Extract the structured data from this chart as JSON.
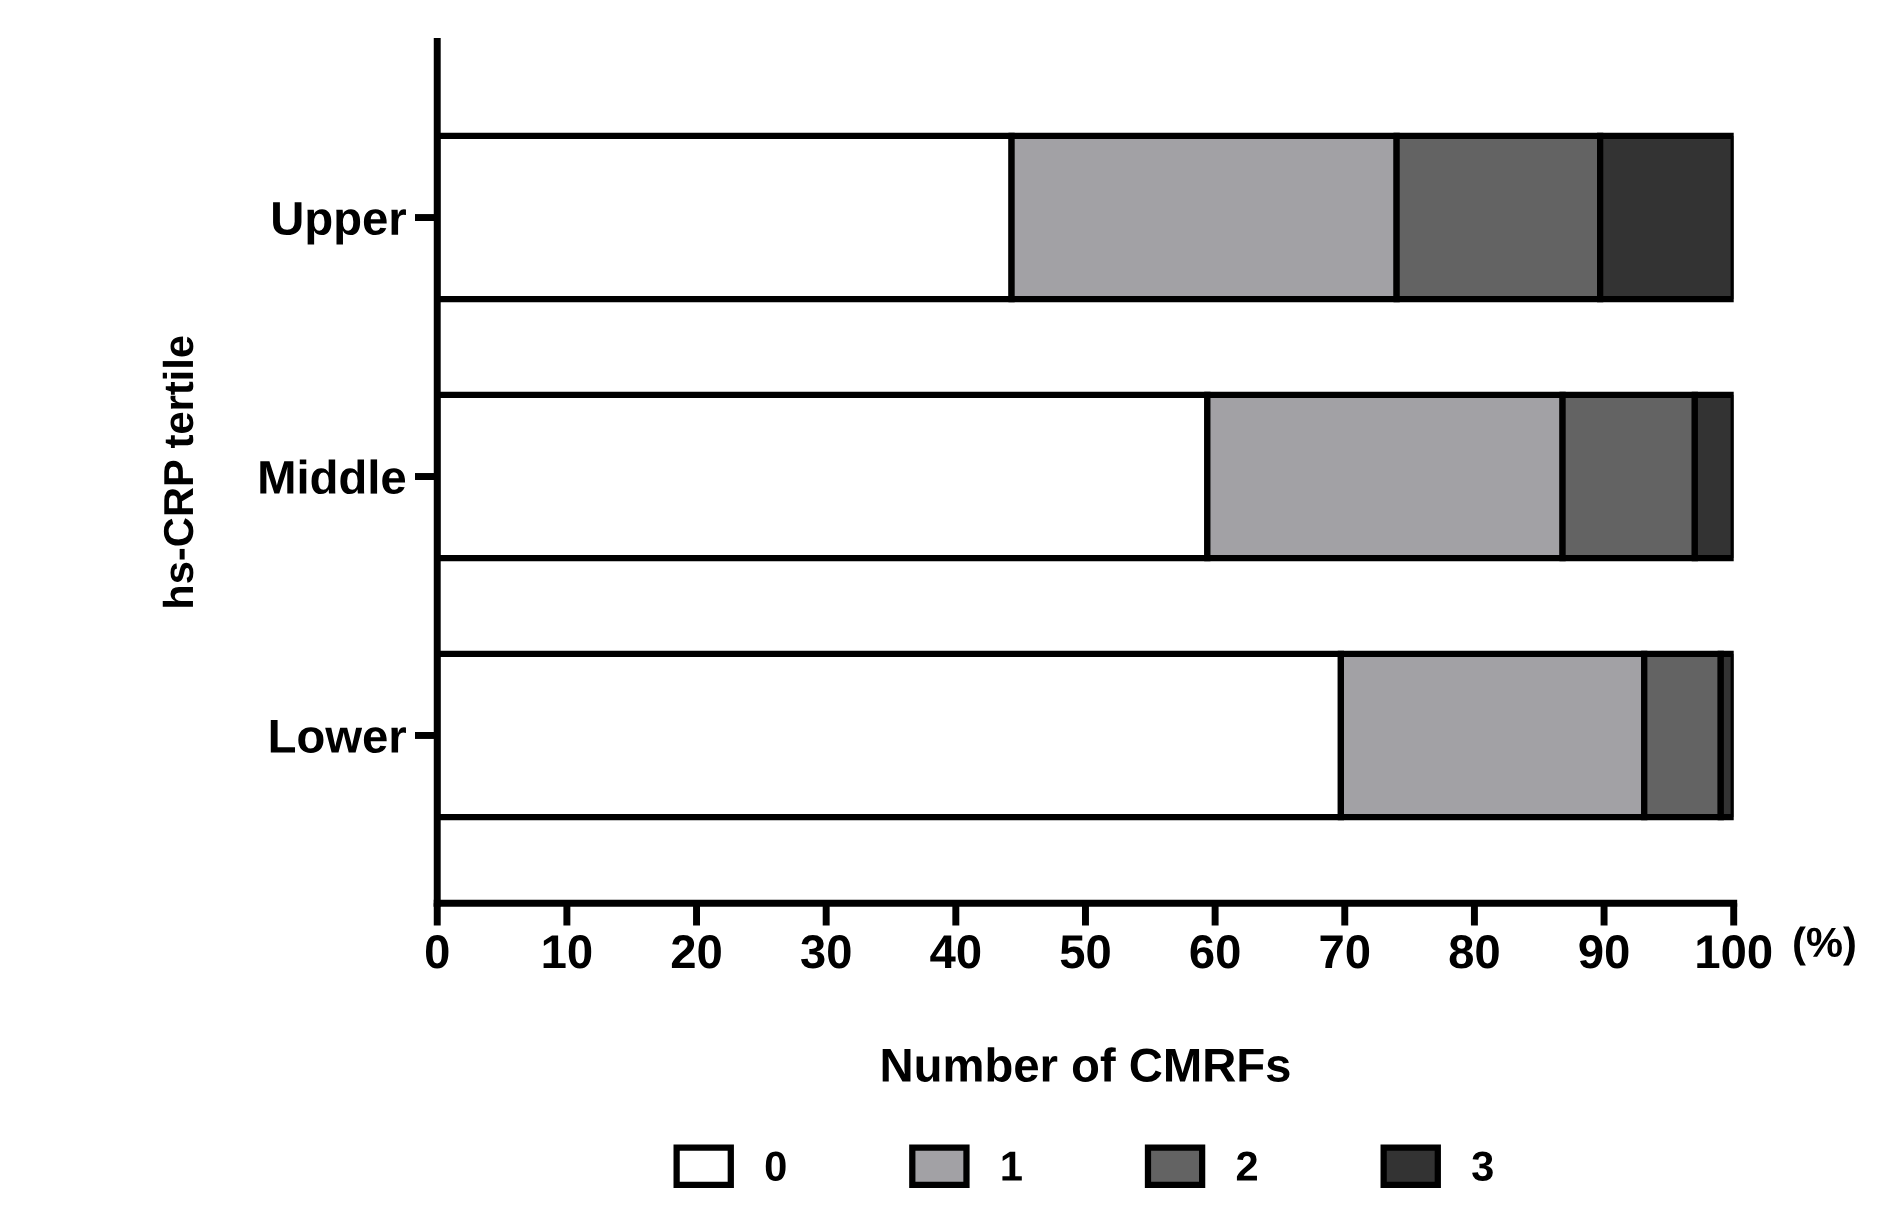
{
  "chart_data": {
    "type": "bar",
    "orientation": "horizontal",
    "stacked": true,
    "xlabel": "Number of CMRFs",
    "ylabel": "hs-CRP tertile",
    "categories": [
      "Upper",
      "Middle",
      "Lower"
    ],
    "series": [
      {
        "name": "0",
        "color": "#ffffff",
        "values": [
          44.3,
          59.4,
          69.7
        ]
      },
      {
        "name": "1",
        "color": "#a2a1a5",
        "values": [
          29.7,
          27.4,
          23.4
        ]
      },
      {
        "name": "2",
        "color": "#636363",
        "values": [
          15.7,
          10.2,
          5.9
        ]
      },
      {
        "name": "3",
        "color": "#333333",
        "values": [
          10.3,
          3.0,
          1.0
        ]
      }
    ],
    "xlim": [
      0,
      100
    ],
    "xticks": [
      0,
      10,
      20,
      30,
      40,
      50,
      60,
      70,
      80,
      90,
      100
    ],
    "annotations": [
      "(%)"
    ],
    "legend": "bottom",
    "grid": false
  }
}
